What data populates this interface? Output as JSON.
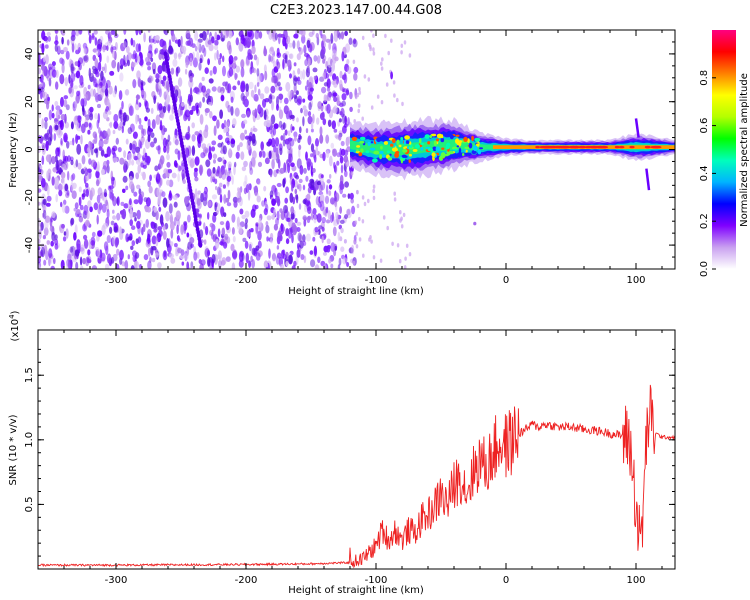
{
  "title": "C2E3.2023.147.00.44.G08",
  "chart_data": [
    {
      "type": "heatmap",
      "xlabel": "Height of straight line (km)",
      "ylabel": "Frequency (Hz)",
      "xlim": [
        -360,
        130
      ],
      "ylim": [
        -50,
        50
      ],
      "x_ticks": [
        -300,
        -200,
        -100,
        0,
        100
      ],
      "y_ticks": [
        -40,
        -20,
        0,
        20,
        40
      ],
      "tick_labels_x": [
        "-300",
        "-200",
        "-100",
        "0",
        "100"
      ],
      "tick_labels_y": [
        "-40",
        "-20",
        "0",
        "20",
        "40"
      ],
      "noise_region_x": [
        -360,
        -120
      ],
      "signal_band": {
        "x": [
          -120,
          -100,
          -80,
          -60,
          -40,
          -20,
          0,
          20,
          40,
          60,
          80,
          100,
          130
        ],
        "center_hz": [
          2,
          0,
          0,
          1,
          2,
          1,
          1,
          1,
          1,
          1,
          1,
          1,
          1
        ],
        "halfwidth_hz": [
          6,
          7,
          8,
          8,
          7,
          4,
          2.5,
          2,
          2,
          2,
          2,
          4,
          2
        ]
      },
      "streak": {
        "x": [
          -262,
          -235
        ],
        "hz": [
          40,
          -40
        ]
      },
      "colorbar": {
        "label": "Normalized spectral amplitude",
        "range": [
          0,
          1
        ],
        "ticks": [
          0.0,
          0.2,
          0.4,
          0.6,
          0.8
        ],
        "tick_labels": [
          "0.0",
          "0.2",
          "0.4",
          "0.6",
          "0.8"
        ],
        "colors": [
          "#ffffff",
          "#c9a0f0",
          "#7f00ff",
          "#0000ff",
          "#00b4ff",
          "#00ffbb",
          "#00ff00",
          "#b4ff00",
          "#ffff00",
          "#ff8000",
          "#ff0000",
          "#ff0080"
        ]
      }
    },
    {
      "type": "line",
      "xlabel": "Height of straight line (km)",
      "ylabel": "SNR (10 * v/v)",
      "y_multiplier": "(x10^4)",
      "y_multiplier_base": "(x10",
      "y_multiplier_exp": "4",
      "y_multiplier_close": ")",
      "xlim": [
        -360,
        130
      ],
      "ylim": [
        0,
        1.85
      ],
      "x_ticks": [
        -300,
        -200,
        -100,
        0,
        100
      ],
      "y_ticks": [
        0.5,
        1.0,
        1.5
      ],
      "tick_labels_x": [
        "-300",
        "-200",
        "-100",
        "0",
        "100"
      ],
      "tick_labels_y": [
        "0.5",
        "1.0",
        "1.5"
      ],
      "color": "#ee2222",
      "series": [
        {
          "x": [
            -360,
            -300,
            -200,
            -150,
            -120,
            -110,
            -100,
            -95,
            -90,
            -85,
            -80,
            -75,
            -70,
            -65,
            -60,
            -55,
            -50,
            -45,
            -40,
            -35,
            -30,
            -25,
            -20,
            -15,
            -10,
            -5,
            0,
            5,
            10,
            15,
            20,
            25,
            30,
            40,
            50,
            60,
            70,
            80,
            90,
            95,
            100,
            103,
            105,
            108,
            110,
            115,
            120,
            130
          ],
          "y": [
            0.03,
            0.03,
            0.035,
            0.04,
            0.05,
            0.08,
            0.18,
            0.3,
            0.22,
            0.3,
            0.22,
            0.3,
            0.28,
            0.38,
            0.42,
            0.48,
            0.58,
            0.5,
            0.65,
            0.72,
            0.6,
            0.75,
            0.85,
            0.78,
            0.9,
            0.98,
            0.95,
            1.0,
            1.05,
            1.08,
            1.12,
            1.1,
            1.12,
            1.1,
            1.1,
            1.08,
            1.07,
            1.05,
            1.03,
            1.0,
            0.5,
            0.2,
            0.35,
            1.0,
            1.2,
            1.05,
            1.02,
            1.02
          ]
        }
      ]
    }
  ]
}
